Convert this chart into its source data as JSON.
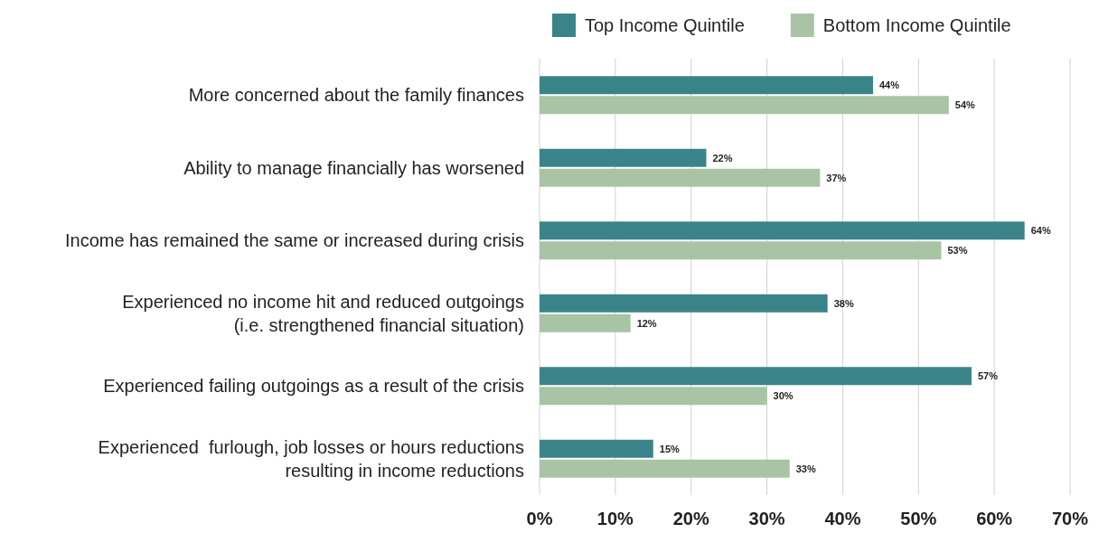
{
  "chart_data": {
    "type": "bar",
    "orientation": "horizontal",
    "categories": [
      "More concerned about the family finances",
      "Ability to manage financially has worsened",
      "Income has remained the same or increased during crisis",
      "Experienced no income hit and reduced outgoings\n(i.e. strengthened financial situation)",
      "Experienced failing outgoings as a result of the crisis",
      "Experienced  furlough, job losses or hours reductions\nresulting in income reductions"
    ],
    "series": [
      {
        "name": "Top Income Quintile",
        "color": "#3a8489",
        "values": [
          44,
          22,
          64,
          38,
          57,
          15
        ],
        "value_labels": [
          "44%",
          "22%",
          "64%",
          "38%",
          "57%",
          "15%"
        ]
      },
      {
        "name": "Bottom Income Quintile",
        "color": "#a8c4a5",
        "values": [
          54,
          37,
          53,
          12,
          30,
          33
        ],
        "value_labels": [
          "54%",
          "37%",
          "53%",
          "12%",
          "30%",
          "33%"
        ]
      }
    ],
    "xlim": [
      0,
      70
    ],
    "xticks": [
      {
        "value": 0,
        "label": "0%"
      },
      {
        "value": 10,
        "label": "10%"
      },
      {
        "value": 20,
        "label": "20%"
      },
      {
        "value": 30,
        "label": "30%"
      },
      {
        "value": 40,
        "label": "40%"
      },
      {
        "value": 50,
        "label": "50%"
      },
      {
        "value": 60,
        "label": "60%"
      },
      {
        "value": 70,
        "label": "70%"
      }
    ],
    "grid": "x",
    "legend": "top"
  }
}
